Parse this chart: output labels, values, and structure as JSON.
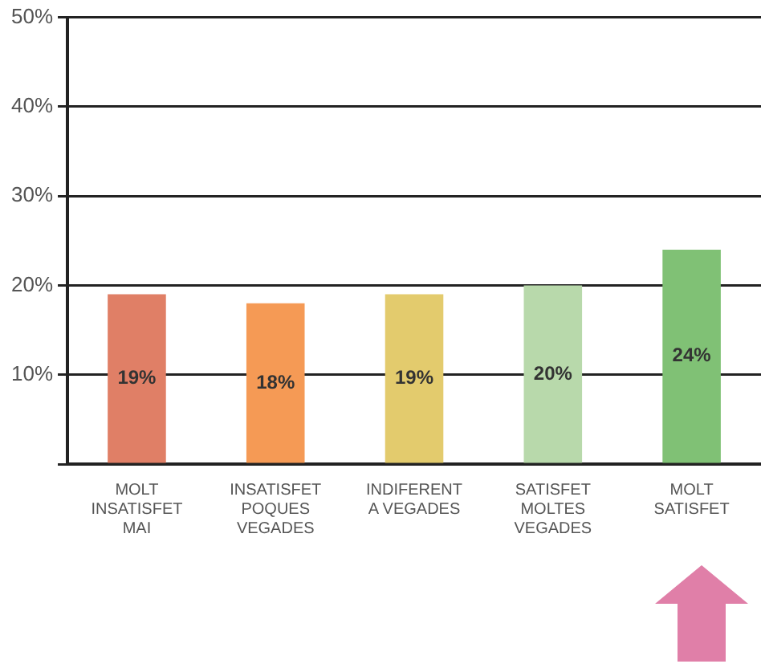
{
  "chart_data": {
    "type": "bar",
    "categories": [
      "MOLT INSATISFET MAI",
      "INSATISFET POQUES VEGADES",
      "INDIFERENT A VEGADES",
      "SATISFET MOLTES VEGADES",
      "MOLT SATISFET"
    ],
    "values": [
      19,
      18,
      19,
      20,
      24
    ],
    "value_labels": [
      "19%",
      "18%",
      "19%",
      "20%",
      "24%"
    ],
    "colors": [
      "#e07f66",
      "#f59a55",
      "#e3cb6d",
      "#b8d9ab",
      "#80c175"
    ],
    "ylim": [
      0,
      50
    ],
    "yticks": [
      {
        "value": 0,
        "label": null
      },
      {
        "value": 10,
        "label": "10%"
      },
      {
        "value": 20,
        "label": "20%"
      },
      {
        "value": 30,
        "label": "30%"
      },
      {
        "value": 40,
        "label": "40%"
      },
      {
        "value": 50,
        "label": "50%"
      }
    ],
    "grid": "y",
    "legend": false
  }
}
